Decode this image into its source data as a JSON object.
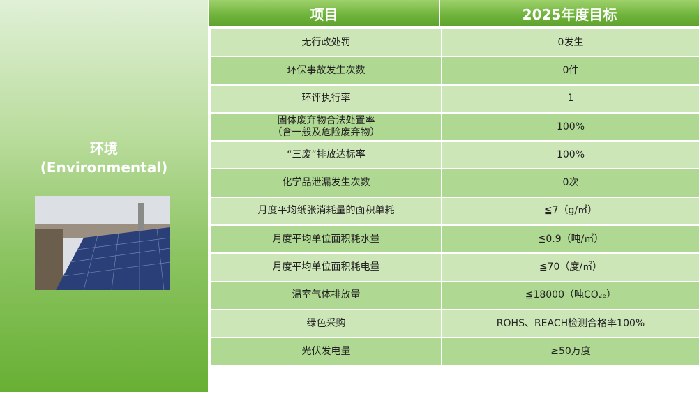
{
  "left": {
    "title_cn": "环境",
    "title_en": "(Environmental)",
    "photo": "solar-panels-rooftop-photo"
  },
  "header": {
    "col1": "项目",
    "col2": "2025年度目标"
  },
  "rows": [
    {
      "item": "无行政处罚",
      "target": "0发生"
    },
    {
      "item": "环保事故发生次数",
      "target": "0件"
    },
    {
      "item": "环评执行率",
      "target": "1"
    },
    {
      "item": "固体废弃物合法处置率",
      "item_sub": "（含一般及危险废弃物）",
      "target": "100%"
    },
    {
      "item": "“三废”排放达标率",
      "target": "100%"
    },
    {
      "item": "化学品泄漏发生次数",
      "target": "0次"
    },
    {
      "item": "月度平均纸张消耗量的面积单耗",
      "target": "≦7（g/㎡）"
    },
    {
      "item": "月度平均单位面积耗水量",
      "target": "≦0.9（吨/㎡）"
    },
    {
      "item": "月度平均单位面积耗电量",
      "target": "≦70（度/㎡）"
    },
    {
      "item": "温室气体排放量",
      "target": "≦18000（吨CO₂ₑ）"
    },
    {
      "item": "绿色采购",
      "target": "ROHS、REACH检测合格率100%"
    },
    {
      "item": "光伏发电量",
      "target": "≥50万度"
    }
  ],
  "colors": {
    "header": "#6db23a",
    "row_light": "#cde6b7",
    "row_dark": "#afd893"
  }
}
